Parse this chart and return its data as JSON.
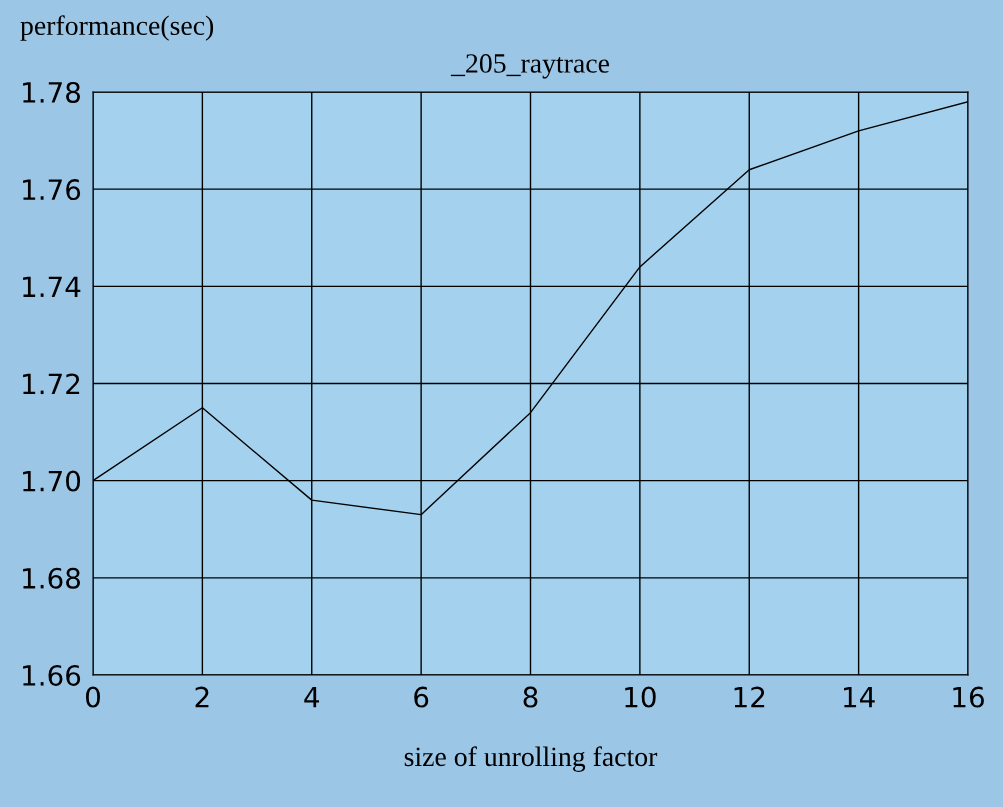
{
  "chart_data": {
    "type": "line",
    "title": "_205_raytrace",
    "xlabel": "size of unrolling factor",
    "ylabel": "performance(sec)",
    "x": [
      0,
      2,
      4,
      6,
      8,
      10,
      12,
      14,
      16
    ],
    "series": [
      {
        "color": "#000000",
        "values": [
          1.7,
          1.715,
          1.696,
          1.693,
          1.714,
          1.744,
          1.764,
          1.772,
          1.778
        ]
      }
    ],
    "xlim": [
      0,
      16
    ],
    "xticks": [
      0,
      2,
      4,
      6,
      8,
      10,
      12,
      14,
      16
    ],
    "ylim": [
      1.66,
      1.78
    ],
    "yticks": [
      1.66,
      1.68,
      {
        "value": 1.7,
        "label": "1.70"
      },
      1.72,
      1.74,
      1.76,
      1.78
    ],
    "grid": true,
    "legend": false,
    "marker": "none",
    "line_style": "solid"
  }
}
